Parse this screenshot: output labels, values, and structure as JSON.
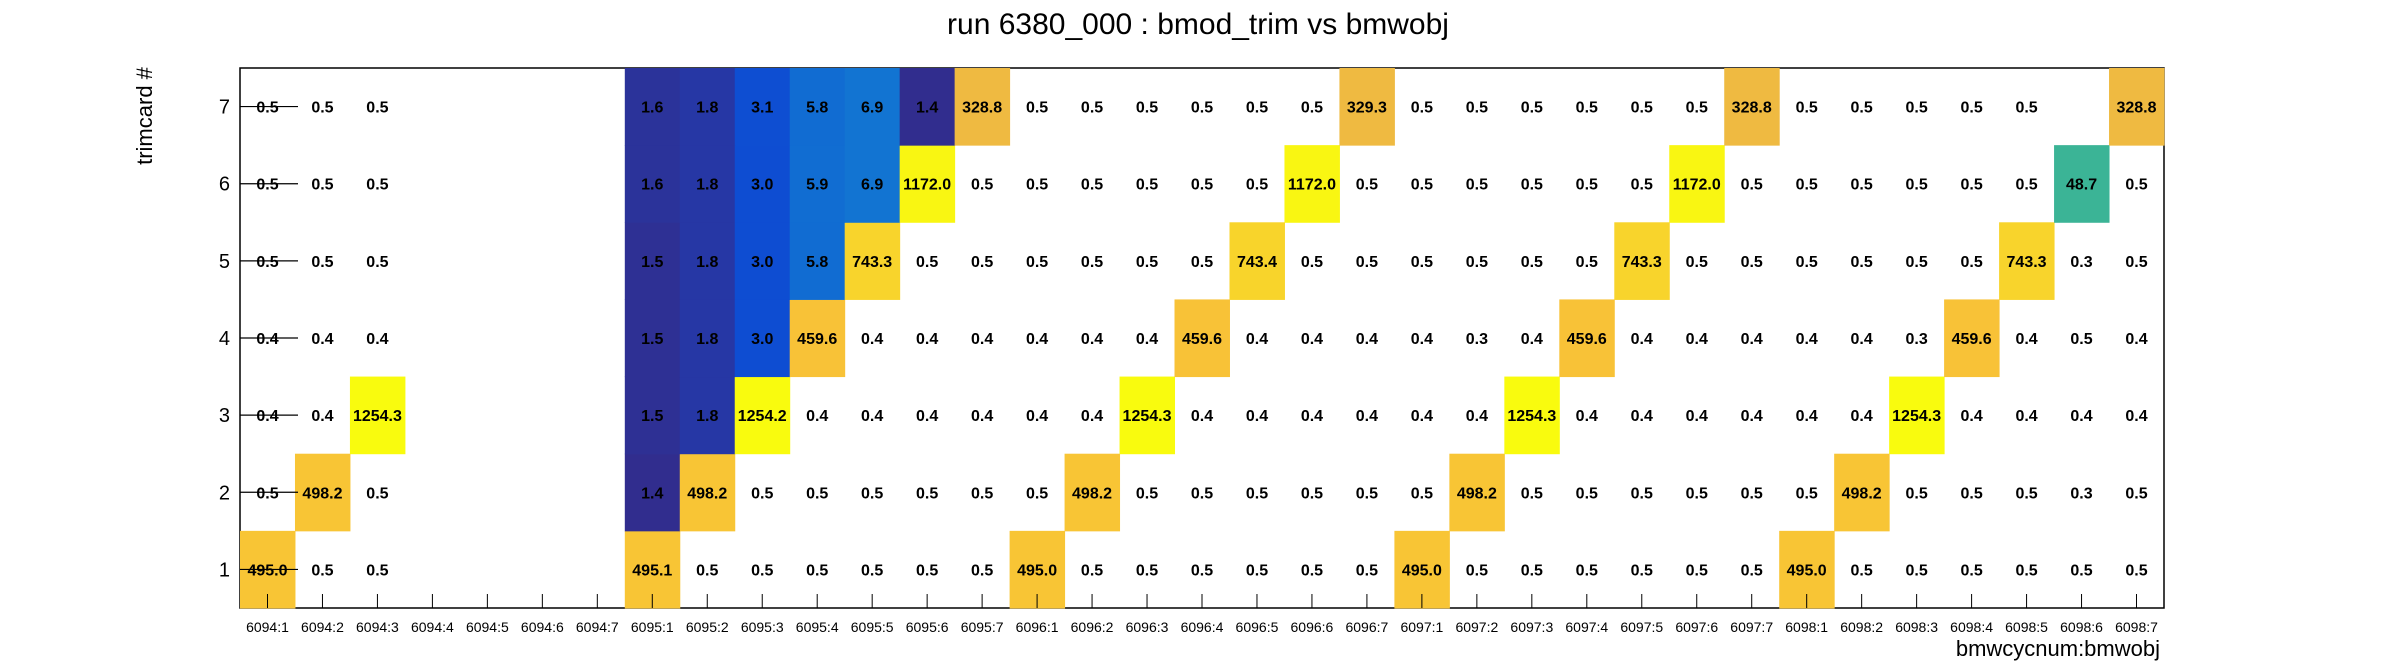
{
  "chart_data": {
    "type": "heatmap",
    "title": "run 6380_000 : bmod_trim vs bmwobj",
    "xlabel": "bmwcycnum:bmwobj",
    "ylabel": "trimcard #",
    "x_categories": [
      "6094:1",
      "6094:2",
      "6094:3",
      "6094:4",
      "6094:5",
      "6094:6",
      "6094:7",
      "6095:1",
      "6095:2",
      "6095:3",
      "6095:4",
      "6095:5",
      "6095:6",
      "6095:7",
      "6096:1",
      "6096:2",
      "6096:3",
      "6096:4",
      "6096:5",
      "6096:6",
      "6096:7",
      "6097:1",
      "6097:2",
      "6097:3",
      "6097:4",
      "6097:5",
      "6097:6",
      "6097:7",
      "6098:1",
      "6098:2",
      "6098:3",
      "6098:4",
      "6098:5",
      "6098:6",
      "6098:7"
    ],
    "y_categories": [
      "1",
      "2",
      "3",
      "4",
      "5",
      "6",
      "7"
    ],
    "values": [
      [
        "495.0",
        "0.5",
        "0.5",
        null,
        null,
        null,
        null,
        "495.1",
        "0.5",
        "0.5",
        "0.5",
        "0.5",
        "0.5",
        "0.5",
        "495.0",
        "0.5",
        "0.5",
        "0.5",
        "0.5",
        "0.5",
        "0.5",
        "495.0",
        "0.5",
        "0.5",
        "0.5",
        "0.5",
        "0.5",
        "0.5",
        "495.0",
        "0.5",
        "0.5",
        "0.5",
        "0.5",
        "0.5",
        "0.5"
      ],
      [
        "0.5",
        "498.2",
        "0.5",
        null,
        null,
        null,
        null,
        "1.4",
        "498.2",
        "0.5",
        "0.5",
        "0.5",
        "0.5",
        "0.5",
        "0.5",
        "498.2",
        "0.5",
        "0.5",
        "0.5",
        "0.5",
        "0.5",
        "0.5",
        "498.2",
        "0.5",
        "0.5",
        "0.5",
        "0.5",
        "0.5",
        "0.5",
        "498.2",
        "0.5",
        "0.5",
        "0.5",
        "0.3",
        "0.5"
      ],
      [
        "0.4",
        "0.4",
        "1254.3",
        null,
        null,
        null,
        null,
        "1.5",
        "1.8",
        "1254.2",
        "0.4",
        "0.4",
        "0.4",
        "0.4",
        "0.4",
        "0.4",
        "1254.3",
        "0.4",
        "0.4",
        "0.4",
        "0.4",
        "0.4",
        "0.4",
        "1254.3",
        "0.4",
        "0.4",
        "0.4",
        "0.4",
        "0.4",
        "0.4",
        "1254.3",
        "0.4",
        "0.4",
        "0.4",
        "0.4"
      ],
      [
        "0.4",
        "0.4",
        "0.4",
        null,
        null,
        null,
        null,
        "1.5",
        "1.8",
        "3.0",
        "459.6",
        "0.4",
        "0.4",
        "0.4",
        "0.4",
        "0.4",
        "0.4",
        "459.6",
        "0.4",
        "0.4",
        "0.4",
        "0.4",
        "0.3",
        "0.4",
        "459.6",
        "0.4",
        "0.4",
        "0.4",
        "0.4",
        "0.4",
        "0.3",
        "459.6",
        "0.4",
        "0.5",
        "0.4"
      ],
      [
        "0.5",
        "0.5",
        "0.5",
        null,
        null,
        null,
        null,
        "1.5",
        "1.8",
        "3.0",
        "5.8",
        "743.3",
        "0.5",
        "0.5",
        "0.5",
        "0.5",
        "0.5",
        "0.5",
        "743.4",
        "0.5",
        "0.5",
        "0.5",
        "0.5",
        "0.5",
        "0.5",
        "743.3",
        "0.5",
        "0.5",
        "0.5",
        "0.5",
        "0.5",
        "0.5",
        "743.3",
        "0.3",
        "0.5"
      ],
      [
        "0.5",
        "0.5",
        "0.5",
        null,
        null,
        null,
        null,
        "1.6",
        "1.8",
        "3.0",
        "5.9",
        "6.9",
        "1172.0",
        "0.5",
        "0.5",
        "0.5",
        "0.5",
        "0.5",
        "0.5",
        "1172.0",
        "0.5",
        "0.5",
        "0.5",
        "0.5",
        "0.5",
        "0.5",
        "1172.0",
        "0.5",
        "0.5",
        "0.5",
        "0.5",
        "0.5",
        "0.5",
        "48.7",
        "0.5"
      ],
      [
        "0.5",
        "0.5",
        "0.5",
        null,
        null,
        null,
        null,
        "1.6",
        "1.8",
        "3.1",
        "5.8",
        "6.9",
        "1.4",
        "328.8",
        "0.5",
        "0.5",
        "0.5",
        "0.5",
        "0.5",
        "0.5",
        "329.3",
        "0.5",
        "0.5",
        "0.5",
        "0.5",
        "0.5",
        "0.5",
        "328.8",
        "0.5",
        "0.5",
        "0.5",
        "0.5",
        "0.5",
        null,
        "328.8"
      ]
    ],
    "color_scale": "kBird (low=blue, high=yellow), log-like",
    "grid": false
  }
}
